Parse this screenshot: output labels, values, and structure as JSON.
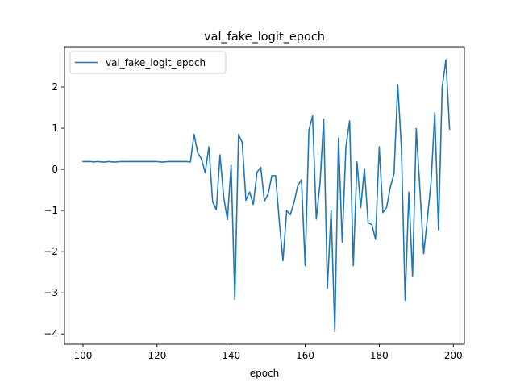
{
  "chart_data": {
    "type": "line",
    "title": "val_fake_logit_epoch",
    "xlabel": "epoch",
    "ylabel": "",
    "xlim": [
      95,
      203
    ],
    "ylim": [
      -4.25,
      2.98
    ],
    "xticks": [
      100,
      120,
      140,
      160,
      180,
      200
    ],
    "yticks": [
      -4,
      -3,
      -2,
      -1,
      0,
      1,
      2
    ],
    "grid": false,
    "legend_position": "top-left",
    "series": [
      {
        "name": "val_fake_logit_epoch",
        "color": "#1f77b4",
        "x": [
          100,
          101,
          102,
          103,
          104,
          105,
          106,
          107,
          108,
          109,
          110,
          111,
          112,
          113,
          114,
          115,
          116,
          117,
          118,
          119,
          120,
          121,
          122,
          123,
          124,
          125,
          126,
          127,
          128,
          129,
          130,
          131,
          132,
          133,
          134,
          135,
          136,
          137,
          138,
          139,
          140,
          141,
          142,
          143,
          144,
          145,
          146,
          147,
          148,
          149,
          150,
          151,
          152,
          153,
          154,
          155,
          156,
          157,
          158,
          159,
          160,
          161,
          162,
          163,
          164,
          165,
          166,
          167,
          168,
          169,
          170,
          171,
          172,
          173,
          174,
          175,
          176,
          177,
          178,
          179,
          180,
          181,
          182,
          183,
          184,
          185,
          186,
          187,
          188,
          189,
          190,
          191,
          192,
          193,
          194,
          195,
          196,
          197,
          198,
          199
        ],
        "y": [
          0.19,
          0.19,
          0.19,
          0.18,
          0.19,
          0.18,
          0.18,
          0.19,
          0.18,
          0.18,
          0.19,
          0.19,
          0.19,
          0.19,
          0.19,
          0.19,
          0.19,
          0.19,
          0.19,
          0.19,
          0.19,
          0.18,
          0.18,
          0.19,
          0.19,
          0.19,
          0.19,
          0.19,
          0.19,
          0.18,
          0.85,
          0.4,
          0.25,
          -0.08,
          0.55,
          -0.78,
          -0.98,
          0.35,
          -0.68,
          -1.22,
          0.1,
          -3.16,
          0.85,
          0.65,
          -0.75,
          -0.55,
          -0.85,
          -0.07,
          0.05,
          -0.77,
          -0.6,
          -0.15,
          -0.15,
          -1.25,
          -2.22,
          -1.0,
          -1.1,
          -0.8,
          -0.4,
          -0.25,
          -2.34,
          0.95,
          1.3,
          -1.21,
          -0.35,
          1.22,
          -2.89,
          -1.0,
          -3.94,
          0.76,
          -1.77,
          0.55,
          1.18,
          -2.34,
          0.18,
          -0.93,
          0.02,
          -1.3,
          -1.34,
          -1.7,
          0.55,
          -1.05,
          -0.92,
          -0.43,
          -0.1,
          2.06,
          0.5,
          -3.18,
          -0.55,
          -2.6,
          0.99,
          -0.5,
          -2.05,
          -1.2,
          -0.3,
          1.38,
          -1.47,
          2.0,
          2.66,
          0.98
        ]
      }
    ]
  }
}
